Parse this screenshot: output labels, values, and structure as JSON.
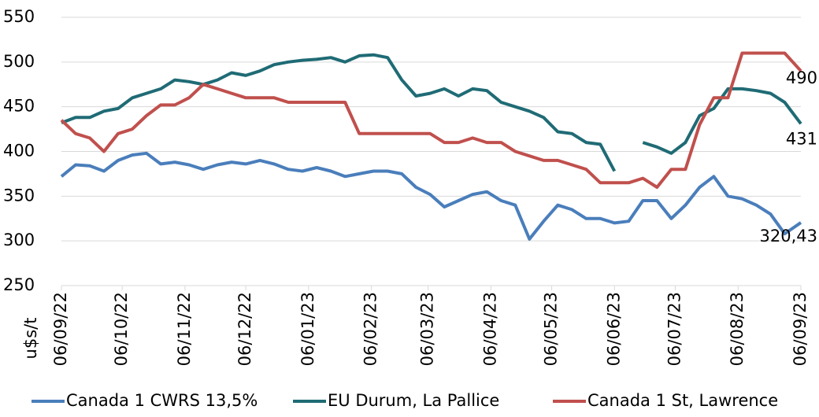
{
  "chart_data": {
    "type": "line",
    "y_label": "u$s/t",
    "x": [
      "06/09/22",
      "13/09/22",
      "20/09/22",
      "27/09/22",
      "04/10/22",
      "11/10/22",
      "18/10/22",
      "25/10/22",
      "01/11/22",
      "08/11/22",
      "15/11/22",
      "22/11/22",
      "29/11/22",
      "06/12/22",
      "13/12/22",
      "20/12/22",
      "27/12/22",
      "03/01/23",
      "10/01/23",
      "17/01/23",
      "24/01/23",
      "31/01/23",
      "07/02/23",
      "14/02/23",
      "21/02/23",
      "28/02/23",
      "07/03/23",
      "14/03/23",
      "21/03/23",
      "28/03/23",
      "04/04/23",
      "11/04/23",
      "18/04/23",
      "25/04/23",
      "02/05/23",
      "09/05/23",
      "16/05/23",
      "23/05/23",
      "30/05/23",
      "06/06/23",
      "13/06/23",
      "20/06/23",
      "27/06/23",
      "04/07/23",
      "11/07/23",
      "18/07/23",
      "25/07/23",
      "01/08/23",
      "08/08/23",
      "15/08/23",
      "22/08/23",
      "29/08/23",
      "06/09/23"
    ],
    "xlim": [
      "06/09/22",
      "06/09/23"
    ],
    "xticks": [
      "06/09/22",
      "06/10/22",
      "06/11/22",
      "06/12/22",
      "06/01/23",
      "06/02/23",
      "06/03/23",
      "06/04/23",
      "06/05/23",
      "06/06/23",
      "06/07/23",
      "06/08/23",
      "06/09/23"
    ],
    "ylim": [
      250,
      550
    ],
    "yticks": [
      250,
      300,
      350,
      400,
      450,
      500,
      550
    ],
    "grid": true,
    "legend": "bottom",
    "series": [
      {
        "name": "Canada 1 CWRS 13,5%",
        "color": "#4a7ebb",
        "values": [
          372,
          385,
          384,
          378,
          390,
          396,
          398,
          386,
          388,
          385,
          380,
          385,
          388,
          386,
          390,
          386,
          380,
          378,
          382,
          378,
          372,
          375,
          378,
          378,
          375,
          360,
          352,
          338,
          345,
          352,
          355,
          345,
          340,
          302,
          322,
          340,
          335,
          325,
          325,
          320,
          322,
          345,
          345,
          325,
          340,
          360,
          372,
          350,
          347,
          340,
          330,
          308,
          320.43
        ],
        "value_labels": [
          null,
          null,
          null,
          null,
          null,
          null,
          null,
          null,
          null,
          null,
          null,
          null,
          null,
          null,
          null,
          null,
          null,
          null,
          null,
          null,
          null,
          null,
          null,
          null,
          null,
          null,
          null,
          null,
          null,
          null,
          null,
          null,
          null,
          null,
          null,
          null,
          null,
          null,
          null,
          null,
          null,
          null,
          null,
          null,
          null,
          null,
          null,
          null,
          null,
          null,
          null,
          null,
          "320,43"
        ]
      },
      {
        "name": "EU Durum, La Pallice",
        "color": "#1f6b75",
        "values": [
          432,
          438,
          438,
          445,
          448,
          460,
          465,
          470,
          480,
          478,
          475,
          480,
          488,
          485,
          490,
          497,
          500,
          502,
          503,
          505,
          500,
          507,
          508,
          505,
          480,
          462,
          465,
          470,
          462,
          470,
          468,
          455,
          450,
          445,
          438,
          422,
          420,
          410,
          408,
          378,
          null,
          410,
          405,
          398,
          410,
          440,
          448,
          470,
          470,
          468,
          465,
          455,
          431
        ],
        "value_labels": [
          null,
          null,
          null,
          null,
          null,
          null,
          null,
          null,
          null,
          null,
          null,
          null,
          null,
          null,
          null,
          null,
          null,
          null,
          null,
          null,
          null,
          null,
          null,
          null,
          null,
          null,
          null,
          null,
          null,
          null,
          null,
          null,
          null,
          null,
          null,
          null,
          null,
          null,
          null,
          null,
          null,
          null,
          null,
          null,
          null,
          null,
          null,
          null,
          null,
          null,
          null,
          null,
          "431"
        ]
      },
      {
        "name": "Canada 1 St, Lawrence",
        "color": "#c0504d",
        "values": [
          435,
          420,
          415,
          400,
          420,
          425,
          440,
          452,
          452,
          460,
          475,
          470,
          465,
          460,
          460,
          460,
          455,
          455,
          455,
          455,
          455,
          420,
          420,
          420,
          420,
          420,
          420,
          410,
          410,
          415,
          410,
          410,
          400,
          395,
          390,
          390,
          385,
          380,
          365,
          365,
          365,
          370,
          360,
          380,
          380,
          430,
          460,
          460,
          510,
          510,
          510,
          510,
          490
        ],
        "value_labels": [
          null,
          null,
          null,
          null,
          null,
          null,
          null,
          null,
          null,
          null,
          null,
          null,
          null,
          null,
          null,
          null,
          null,
          null,
          null,
          null,
          null,
          null,
          null,
          null,
          null,
          null,
          null,
          null,
          null,
          null,
          null,
          null,
          null,
          null,
          null,
          null,
          null,
          null,
          null,
          null,
          null,
          null,
          null,
          null,
          null,
          null,
          null,
          null,
          null,
          null,
          null,
          null,
          "490"
        ]
      }
    ]
  }
}
